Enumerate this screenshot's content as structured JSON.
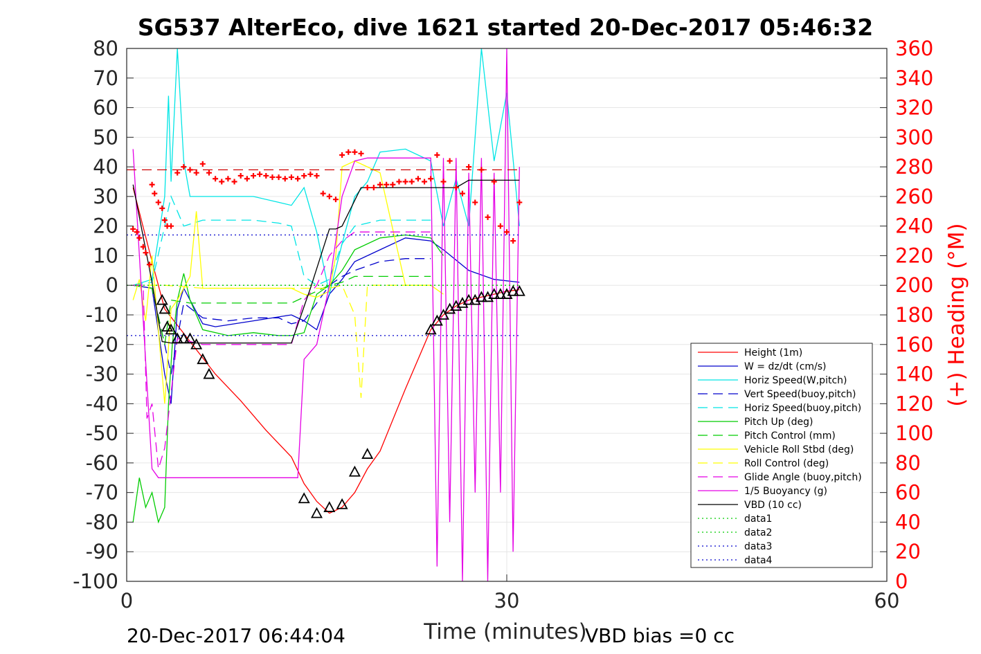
{
  "chart_data": {
    "type": "line",
    "title": "SG537 AlterEco, dive 1621 started 20-Dec-2017 05:46:32",
    "xlabel": "Time (minutes)",
    "ylabel": "",
    "y2label": "(+) Heading (°M)",
    "xlim": [
      0,
      60
    ],
    "ylim": [
      -100,
      80
    ],
    "y2lim": [
      0,
      360
    ],
    "xticks": [
      "0",
      "30",
      "60"
    ],
    "yticks": [
      "80",
      "70",
      "60",
      "50",
      "40",
      "30",
      "20",
      "10",
      "0",
      "-10",
      "-20",
      "-30",
      "-40",
      "-50",
      "-60",
      "-70",
      "-80",
      "-90",
      "-100"
    ],
    "y2ticks": [
      "360",
      "340",
      "320",
      "300",
      "280",
      "260",
      "240",
      "220",
      "200",
      "180",
      "160",
      "140",
      "120",
      "100",
      "80",
      "60",
      "40",
      "20",
      "0"
    ],
    "grid": true,
    "legend_position": "bottom-right",
    "footer_left": "20-Dec-2017 06:44:04",
    "footer_right": "VBD bias =0 cc",
    "series": [
      {
        "name": "Height (1m)",
        "color": "#ff0000",
        "style": "solid",
        "x": [
          0.5,
          2,
          3,
          5,
          7,
          9,
          11,
          13,
          14,
          15,
          16,
          17,
          18,
          19,
          20,
          22,
          24,
          25,
          26,
          27,
          28,
          29,
          30,
          31
        ],
        "y": [
          33,
          8,
          -8,
          -19,
          -30,
          -39,
          -49,
          -58,
          -67,
          -73,
          -77,
          -75,
          -70,
          -62,
          -56,
          -35,
          -15,
          -10,
          -7,
          -5,
          -4,
          -3,
          -2,
          -1.5
        ]
      },
      {
        "name": "W = dz/dt (cm/s)",
        "color": "#0000cc",
        "style": "solid",
        "x": [
          0.5,
          2,
          3,
          3.5,
          4,
          4.5,
          5,
          6,
          7,
          10,
          13,
          14,
          15,
          16,
          17,
          18,
          20,
          22,
          24,
          25,
          27,
          29,
          31
        ],
        "y": [
          0,
          -1,
          -30,
          -40,
          -8,
          -1,
          -5,
          -13,
          -14,
          -12,
          -10,
          -12,
          -15,
          -3,
          2,
          8,
          12,
          16,
          15,
          12,
          5,
          2,
          1
        ]
      },
      {
        "name": "Horiz Speed(W,pitch)",
        "color": "#00e5e5",
        "style": "solid",
        "x": [
          0.5,
          2,
          3,
          3.3,
          3.5,
          4,
          4.5,
          5,
          6,
          8,
          10,
          12,
          13,
          14,
          15,
          16,
          17,
          18,
          19,
          20,
          22,
          24,
          25,
          26,
          27,
          28,
          29,
          30,
          31
        ],
        "y": [
          0,
          2,
          30,
          64,
          35,
          80,
          42,
          30,
          30,
          30,
          30,
          28,
          27,
          33,
          18,
          -3,
          14,
          30,
          35,
          45,
          46,
          42,
          20,
          36,
          20,
          80,
          42,
          65,
          20
        ]
      },
      {
        "name": "Vert Speed(buoy,pitch)",
        "color": "#0000cc",
        "style": "dashed",
        "x": [
          0.5,
          2,
          3,
          3.5,
          4.5,
          6,
          8,
          10,
          12,
          13,
          14,
          15,
          16,
          17,
          18,
          20,
          22,
          24
        ],
        "y": [
          0,
          -1,
          -20,
          -30,
          -6,
          -11,
          -12,
          -11,
          -11,
          -13,
          -12,
          -6,
          0,
          3,
          5,
          8,
          9,
          9
        ]
      },
      {
        "name": "Horiz Speed(buoy,pitch)",
        "color": "#00e5e5",
        "style": "dashed",
        "x": [
          0.5,
          2,
          3,
          3.5,
          4.5,
          6,
          8,
          10,
          12,
          13,
          14,
          15,
          16,
          17,
          18,
          20,
          22,
          24
        ],
        "y": [
          0,
          1,
          20,
          30,
          20,
          22,
          22,
          22,
          21,
          20,
          3,
          0,
          2,
          14,
          20,
          22,
          22,
          22
        ]
      },
      {
        "name": "Pitch Up (deg)",
        "color": "#00cc00",
        "style": "solid",
        "x": [
          0.5,
          1,
          1.5,
          2,
          2.5,
          3,
          3.3,
          3.6,
          4,
          4.5,
          5,
          6,
          8,
          10,
          12,
          13,
          14,
          15,
          16,
          17,
          18,
          20,
          22,
          24,
          25
        ],
        "y": [
          -80,
          -65,
          -75,
          -70,
          -80,
          -75,
          -40,
          -20,
          -5,
          4,
          -5,
          -15,
          -17,
          -16,
          -17,
          -17,
          -16,
          -3,
          0,
          5,
          12,
          16,
          17,
          16,
          10
        ]
      },
      {
        "name": "Pitch Control (mm)",
        "color": "#00cc00",
        "style": "dashed",
        "x": [
          0.5,
          2,
          3,
          3.5,
          5,
          8,
          12,
          13,
          14,
          15,
          16,
          17,
          18,
          20,
          22,
          24
        ],
        "y": [
          0,
          -1,
          -20,
          -5,
          -6,
          -6,
          -6,
          -6,
          -4,
          -2,
          0,
          1,
          3,
          3,
          3,
          3
        ]
      },
      {
        "name": "Vehicle Roll Stbd (deg)",
        "color": "#ffff00",
        "style": "solid",
        "x": [
          0.5,
          1,
          1.5,
          2,
          3,
          3.5,
          4,
          5,
          5.5,
          6,
          7,
          10,
          13,
          14,
          15,
          16,
          16.5,
          17,
          18,
          19,
          20,
          22,
          24,
          25
        ],
        "y": [
          -5,
          2,
          -12,
          10,
          -40,
          -8,
          -5,
          3,
          25,
          -1,
          -1,
          -1,
          -1,
          -3,
          -4,
          -2,
          10,
          40,
          42,
          40,
          38,
          0,
          0,
          -3
        ]
      },
      {
        "name": "Roll Control (deg)",
        "color": "#ffff00",
        "style": "dashed",
        "x": [
          0.5,
          3,
          6,
          10,
          14,
          16,
          17,
          18,
          18.5,
          19,
          20,
          24
        ],
        "y": [
          0,
          0,
          -1,
          -1,
          -1,
          -1,
          0,
          -10,
          -38,
          0,
          0,
          0
        ]
      },
      {
        "name": "Glide Angle (buoy,pitch)",
        "color": "#e500e5",
        "style": "dashed",
        "x": [
          0.5,
          1.3,
          1.6,
          2,
          2.5,
          3,
          4,
          6,
          10,
          13,
          14,
          15,
          16,
          17,
          18,
          20,
          22,
          24
        ],
        "y": [
          0,
          0,
          -45,
          -40,
          -62,
          -55,
          -18,
          -20,
          -20,
          -20,
          -5,
          0,
          10,
          15,
          18,
          18,
          18,
          18
        ]
      },
      {
        "name": "1/5 Buoyancy (g)",
        "color": "#e500e5",
        "style": "solid",
        "x": [
          0.5,
          2,
          2.5,
          3,
          3.5,
          5,
          8,
          10,
          13,
          13.5,
          14,
          15,
          16,
          17,
          18,
          19,
          20,
          22,
          24,
          24.5,
          25,
          25.5,
          26,
          26.5,
          27,
          27.5,
          28,
          28.5,
          29,
          29.5,
          30,
          30.5,
          31
        ],
        "y": [
          46,
          -62,
          -65,
          -65,
          -65,
          -65,
          -65,
          -65,
          -65,
          -65,
          -25,
          -20,
          0,
          30,
          42,
          43,
          43,
          43,
          43,
          -95,
          43,
          -80,
          43,
          -100,
          38,
          -70,
          43,
          -100,
          38,
          -70,
          80,
          -90,
          40
        ]
      },
      {
        "name": "VBD (10 cc)",
        "color": "#000000",
        "style": "solid",
        "x": [
          0.5,
          2,
          2.8,
          3.5,
          13,
          14.5,
          16,
          16.5,
          17,
          18.5,
          20,
          24,
          26,
          27,
          31
        ],
        "y": [
          34,
          1,
          -19,
          -19.5,
          -19.5,
          -1,
          19,
          19,
          20,
          33,
          33,
          33,
          33,
          35.5,
          35.5
        ]
      },
      {
        "name": "data1",
        "color": "#00cc00",
        "style": "dotted",
        "x": [
          0,
          31
        ],
        "y": [
          0,
          0
        ]
      },
      {
        "name": "data2",
        "color": "#00cc00",
        "style": "dotted",
        "x": [
          0,
          31
        ],
        "y": [
          0,
          0
        ]
      },
      {
        "name": "data3",
        "color": "#0000cc",
        "style": "dotted",
        "x": [
          0,
          31
        ],
        "y": [
          17,
          17
        ]
      },
      {
        "name": "data4",
        "color": "#0000cc",
        "style": "dotted",
        "x": [
          0,
          31
        ],
        "y": [
          -17,
          -17
        ]
      }
    ],
    "reference_line": {
      "color": "#cc0000",
      "style": "dashed",
      "y2": 278,
      "x": [
        0,
        31
      ]
    },
    "heading_points": {
      "color": "#ff0000",
      "marker": "+",
      "axis": "y2",
      "x": [
        0.5,
        0.8,
        1,
        1.3,
        1.5,
        1.8,
        2,
        2.2,
        2.5,
        2.8,
        3,
        3.2,
        3.5,
        4,
        4.5,
        5,
        5.5,
        6,
        6.5,
        7,
        7.5,
        8,
        8.5,
        9,
        9.5,
        10,
        10.5,
        11,
        11.5,
        12,
        12.5,
        13,
        13.5,
        14,
        14.5,
        15,
        15.5,
        16,
        16.5,
        17,
        17.5,
        18,
        18.5,
        19,
        19.5,
        20,
        20.5,
        21,
        21.5,
        22,
        22.5,
        23,
        23.5,
        24,
        24.5,
        25,
        25.5,
        26,
        26.5,
        27,
        27.5,
        28,
        28.5,
        29,
        29.5,
        30,
        30.5,
        31
      ],
      "y": [
        238,
        236,
        232,
        226,
        222,
        214,
        268,
        262,
        256,
        252,
        244,
        240,
        240,
        276,
        280,
        278,
        276,
        282,
        276,
        272,
        270,
        272,
        270,
        274,
        272,
        274,
        275,
        274,
        273,
        273,
        272,
        273,
        272,
        274,
        275,
        274,
        262,
        260,
        258,
        288,
        290,
        290,
        289,
        266,
        266,
        268,
        268,
        268,
        270,
        270,
        270,
        272,
        270,
        272,
        288,
        270,
        284,
        266,
        262,
        280,
        256,
        278,
        246,
        270,
        240,
        236,
        230,
        256
      ]
    },
    "depth_markers": {
      "color": "#000000",
      "marker": "triangle",
      "x": [
        2.8,
        3,
        3.2,
        3.5,
        4,
        4.5,
        5,
        5.5,
        6,
        6.5,
        14,
        15,
        16,
        17,
        18,
        19,
        24,
        24.5,
        25,
        25.5,
        26,
        26.5,
        27,
        27.5,
        28,
        28.5,
        29,
        29.5,
        30,
        30.5,
        31
      ],
      "y": [
        -5,
        -8,
        -14,
        -15,
        -18,
        -18,
        -18,
        -20,
        -25,
        -30,
        -72,
        -77,
        -75,
        -74,
        -63,
        -57,
        -15,
        -12,
        -10,
        -8,
        -7,
        -6,
        -5,
        -5,
        -4,
        -4,
        -3,
        -3,
        -3,
        -2,
        -2
      ]
    }
  }
}
